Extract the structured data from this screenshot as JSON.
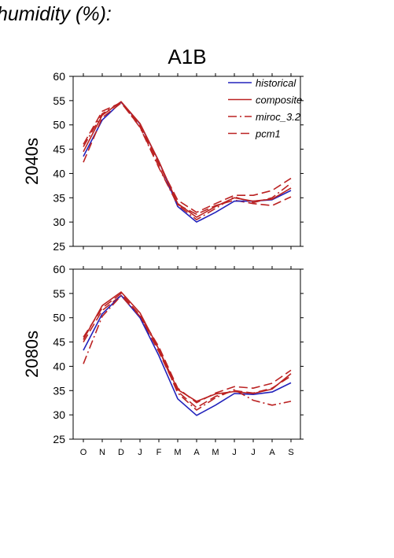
{
  "header": "humidity (%):",
  "scenario_title": "A1B",
  "colors": {
    "historical": "#2222bb",
    "model": "#bb2222"
  },
  "chart_data": [
    {
      "type": "line",
      "panel_label": "2040s",
      "categories": [
        "O",
        "N",
        "D",
        "J",
        "F",
        "M",
        "A",
        "M",
        "J",
        "J",
        "A",
        "S"
      ],
      "ylim": [
        25,
        60
      ],
      "yticks": [
        25,
        30,
        35,
        40,
        45,
        50,
        55,
        60
      ],
      "legend_position": "top-right",
      "series": [
        {
          "name": "historical",
          "style": "solid",
          "values": [
            43.5,
            51.0,
            54.7,
            50.2,
            42.5,
            33.2,
            30.0,
            32.0,
            34.3,
            34.3,
            34.6,
            36.5
          ]
        },
        {
          "name": "composite",
          "style": "solid",
          "values": [
            44.5,
            52.0,
            54.8,
            50.3,
            42.5,
            33.8,
            31.0,
            33.2,
            35.0,
            34.3,
            34.7,
            37.0
          ]
        },
        {
          "name": "miroc_3.2",
          "style": "dashdot",
          "values": [
            45.5,
            52.3,
            54.7,
            49.5,
            41.2,
            33.5,
            30.5,
            32.8,
            35.2,
            34.0,
            35.0,
            38.0
          ]
        },
        {
          "name": "pcm1",
          "style": "dashed",
          "values": [
            42.3,
            51.5,
            54.5,
            50.0,
            42.0,
            34.5,
            32.0,
            33.8,
            35.5,
            35.5,
            36.5,
            39.0
          ]
        }
      ],
      "extra_series": [
        {
          "style": "dashed",
          "values": [
            46.0,
            52.8,
            54.6,
            49.6,
            41.4,
            33.6,
            31.6,
            33.4,
            34.5,
            33.8,
            33.4,
            35.2
          ]
        }
      ]
    },
    {
      "type": "line",
      "panel_label": "2080s",
      "categories": [
        "O",
        "N",
        "D",
        "J",
        "F",
        "M",
        "A",
        "M",
        "J",
        "J",
        "A",
        "S"
      ],
      "ylim": [
        25,
        60
      ],
      "yticks": [
        25,
        30,
        35,
        40,
        45,
        50,
        55,
        60
      ],
      "series": [
        {
          "name": "historical",
          "style": "solid",
          "values": [
            43.3,
            50.8,
            54.6,
            50.0,
            42.2,
            33.3,
            29.9,
            32.0,
            34.4,
            34.2,
            34.7,
            36.6
          ]
        },
        {
          "name": "composite",
          "style": "solid",
          "values": [
            45.5,
            52.5,
            55.3,
            51.0,
            43.5,
            35.2,
            32.8,
            34.3,
            34.8,
            34.4,
            35.3,
            38.5
          ]
        },
        {
          "name": "miroc_3.2",
          "style": "dashdot",
          "values": [
            40.5,
            50.3,
            54.5,
            50.3,
            43.5,
            34.5,
            31.0,
            33.5,
            35.2,
            33.0,
            32.0,
            32.8
          ]
        },
        {
          "name": "pcm1",
          "style": "dashed",
          "values": [
            46.0,
            52.0,
            55.0,
            50.5,
            44.0,
            35.5,
            32.5,
            34.5,
            35.8,
            35.5,
            36.5,
            39.2
          ]
        }
      ],
      "extra_series": [
        {
          "style": "dashed",
          "values": [
            45.0,
            51.5,
            54.6,
            50.2,
            43.0,
            34.8,
            31.5,
            33.8,
            35.0,
            34.5,
            35.5,
            38.0
          ]
        }
      ]
    }
  ]
}
